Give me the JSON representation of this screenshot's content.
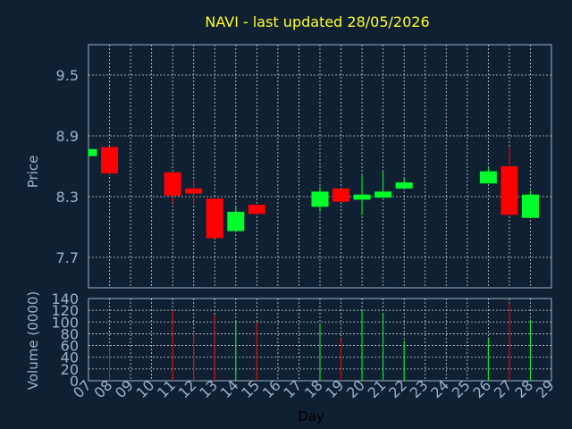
{
  "colors": {
    "background": "#0f2032",
    "title": "#ffff22",
    "axis_text": "#9bb2cc",
    "up": "#00ff2a",
    "down": "#ff0000"
  },
  "chart_data": {
    "type": "candlestick",
    "title": "NAVI - last updated 28/05/2026",
    "price_panel": {
      "ylabel": "Price",
      "ylim": [
        7.4,
        9.8
      ],
      "yticks": [
        "9.5",
        "8.9",
        "8.3",
        "7.7"
      ],
      "grid": true
    },
    "volume_panel": {
      "ylabel": "Volume (0000)",
      "ylim": [
        0,
        140
      ],
      "yticks": [
        "140",
        "120",
        "100",
        "80",
        "60",
        "40",
        "20",
        "0"
      ],
      "grid": true
    },
    "xlabel": "Day",
    "x_ticks": [
      "07",
      "08",
      "09",
      "10",
      "11",
      "12",
      "13",
      "14",
      "15",
      "16",
      "17",
      "18",
      "19",
      "20",
      "21",
      "22",
      "23",
      "24",
      "25",
      "26",
      "27",
      "28",
      "29"
    ],
    "candles": [
      {
        "day": "07",
        "open": 8.7,
        "close": 8.77,
        "high": 8.77,
        "low": 8.7,
        "volume": 0
      },
      {
        "day": "08",
        "open": 8.79,
        "close": 8.53,
        "high": 8.79,
        "low": 8.51,
        "volume": 60
      },
      {
        "day": "11",
        "open": 8.54,
        "close": 8.31,
        "high": 8.54,
        "low": 8.24,
        "volume": 120
      },
      {
        "day": "12",
        "open": 8.38,
        "close": 8.33,
        "high": 8.46,
        "low": 8.23,
        "volume": 80
      },
      {
        "day": "13",
        "open": 8.28,
        "close": 7.89,
        "high": 8.28,
        "low": 7.89,
        "volume": 112
      },
      {
        "day": "14",
        "open": 7.96,
        "close": 8.15,
        "high": 8.21,
        "low": 7.96,
        "volume": 100
      },
      {
        "day": "15",
        "open": 8.22,
        "close": 8.13,
        "high": 8.22,
        "low": 8.13,
        "volume": 100
      },
      {
        "day": "18",
        "open": 8.2,
        "close": 8.35,
        "high": 8.4,
        "low": 8.15,
        "volume": 96
      },
      {
        "day": "19",
        "open": 8.38,
        "close": 8.25,
        "high": 8.38,
        "low": 8.25,
        "volume": 72
      },
      {
        "day": "20",
        "open": 8.27,
        "close": 8.32,
        "high": 8.51,
        "low": 8.12,
        "volume": 120
      },
      {
        "day": "21",
        "open": 8.29,
        "close": 8.35,
        "high": 8.55,
        "low": 8.29,
        "volume": 115
      },
      {
        "day": "22",
        "open": 8.38,
        "close": 8.44,
        "high": 8.48,
        "low": 8.38,
        "volume": 68
      },
      {
        "day": "26",
        "open": 8.43,
        "close": 8.55,
        "high": 8.59,
        "low": 8.43,
        "volume": 74
      },
      {
        "day": "27",
        "open": 8.6,
        "close": 8.12,
        "high": 8.79,
        "low": 8.12,
        "volume": 132
      },
      {
        "day": "28",
        "open": 8.09,
        "close": 8.32,
        "high": 8.36,
        "low": 8.09,
        "volume": 104
      }
    ]
  }
}
